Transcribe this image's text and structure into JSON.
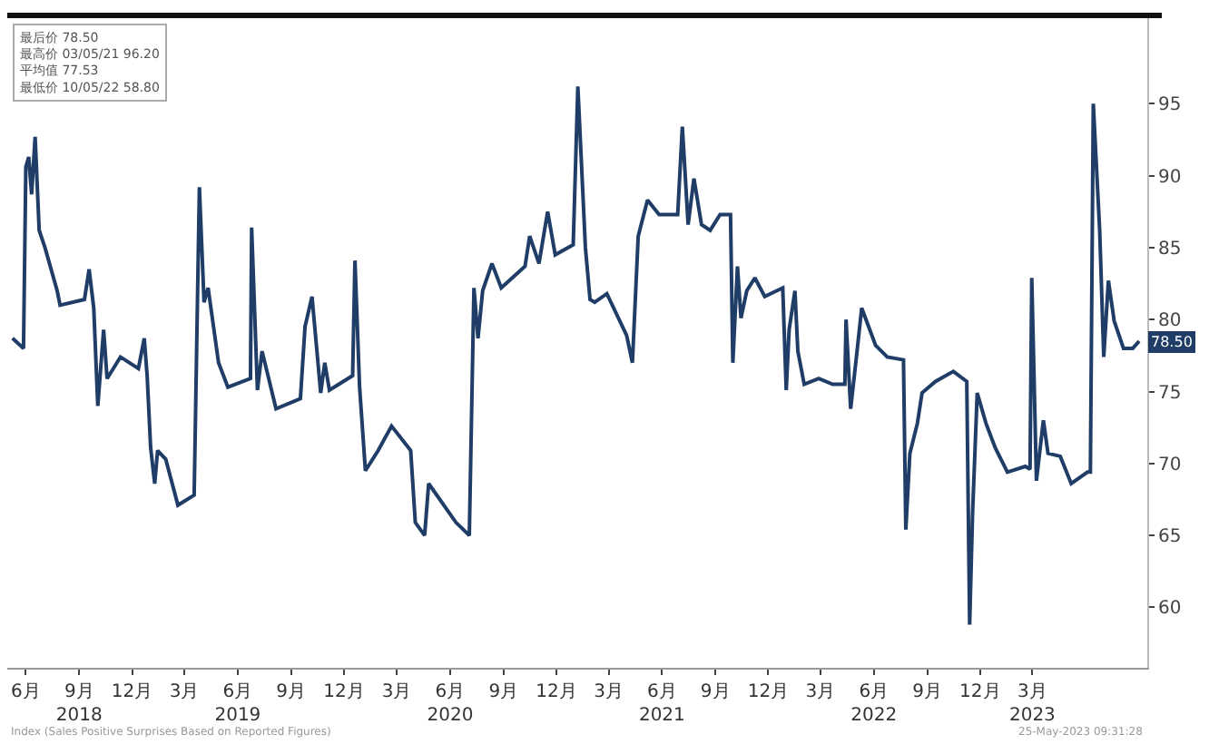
{
  "chart_data": {
    "type": "line",
    "x": [
      "2018-05-09",
      "2018-05-28",
      "2018-06-01",
      "2018-06-06",
      "2018-06-11",
      "2018-06-17",
      "2018-06-24",
      "2018-07-04",
      "2018-07-25",
      "2018-07-30",
      "2018-09-10",
      "2018-09-18",
      "2018-09-26",
      "2018-10-03",
      "2018-10-13",
      "2018-10-19",
      "2018-11-11",
      "2018-12-12",
      "2018-12-22",
      "2018-12-27",
      "2019-01-02",
      "2019-01-09",
      "2019-01-14",
      "2019-01-28",
      "2019-02-18",
      "2019-03-18",
      "2019-03-27",
      "2019-04-04",
      "2019-04-11",
      "2019-04-29",
      "2019-05-15",
      "2019-06-23",
      "2019-06-25",
      "2019-07-05",
      "2019-07-13",
      "2019-08-06",
      "2019-09-17",
      "2019-09-25",
      "2019-10-07",
      "2019-10-22",
      "2019-10-29",
      "2019-11-06",
      "2019-12-16",
      "2019-12-20",
      "2019-12-28",
      "2020-01-07",
      "2020-01-29",
      "2020-02-21",
      "2020-03-25",
      "2020-04-02",
      "2020-04-18",
      "2020-04-25",
      "2020-06-11",
      "2020-07-04",
      "2020-07-12",
      "2020-07-19",
      "2020-07-27",
      "2020-08-12",
      "2020-08-28",
      "2020-10-08",
      "2020-10-16",
      "2020-11-01",
      "2020-11-16",
      "2020-11-29",
      "2020-12-30",
      "2021-01-07",
      "2021-01-20",
      "2021-01-28",
      "2021-02-05",
      "2021-02-26",
      "2021-04-01",
      "2021-04-11",
      "2021-04-21",
      "2021-05-07",
      "2021-05-27",
      "2021-06-28",
      "2021-07-06",
      "2021-07-16",
      "2021-07-26",
      "2021-08-08",
      "2021-08-23",
      "2021-09-09",
      "2021-09-27",
      "2021-10-01",
      "2021-10-09",
      "2021-10-15",
      "2021-10-25",
      "2021-11-08",
      "2021-11-25",
      "2021-12-26",
      "2022-01-01",
      "2022-01-06",
      "2022-01-16",
      "2022-01-21",
      "2022-02-01",
      "2022-02-26",
      "2022-03-22",
      "2022-04-12",
      "2022-04-14",
      "2022-04-22",
      "2022-05-03",
      "2022-05-11",
      "2022-06-04",
      "2022-06-24",
      "2022-07-22",
      "2022-07-26",
      "2022-08-02",
      "2022-08-15",
      "2022-08-23",
      "2022-09-15",
      "2022-10-16",
      "2022-11-08",
      "2022-11-13",
      "2022-11-18",
      "2022-11-26",
      "2022-12-11",
      "2022-12-27",
      "2023-01-17",
      "2023-02-17",
      "2023-02-25",
      "2023-02-28",
      "2023-03-08",
      "2023-03-20",
      "2023-03-28",
      "2023-04-18",
      "2023-05-07",
      "2023-06-04",
      "2023-06-09",
      "2023-06-14",
      "2023-06-25",
      "2023-07-02",
      "2023-07-10",
      "2023-07-20",
      "2023-08-05",
      "2023-08-21",
      "2023-09-01"
    ],
    "series": [
      {
        "color": "#1f3d66",
        "values": [
          78.7,
          78.0,
          90.6,
          91.3,
          88.7,
          92.7,
          86.2,
          85.0,
          82.0,
          81.0,
          81.4,
          83.5,
          80.8,
          74.0,
          79.3,
          75.9,
          77.4,
          76.6,
          78.7,
          76.1,
          71.1,
          68.6,
          70.9,
          70.3,
          67.1,
          67.8,
          89.2,
          81.2,
          82.2,
          77.0,
          75.3,
          75.9,
          86.4,
          75.1,
          77.8,
          73.8,
          74.5,
          79.5,
          81.6,
          74.9,
          77.0,
          75.1,
          76.1,
          84.1,
          75.3,
          69.5,
          70.9,
          72.6,
          70.9,
          65.9,
          65.0,
          68.6,
          65.9,
          65.0,
          82.2,
          78.7,
          82.0,
          83.9,
          82.2,
          83.7,
          85.8,
          83.9,
          87.5,
          84.5,
          85.2,
          96.2,
          85.0,
          81.4,
          81.2,
          81.8,
          78.9,
          77.0,
          85.8,
          88.3,
          87.3,
          87.3,
          93.4,
          86.6,
          89.8,
          86.6,
          86.2,
          87.3,
          87.3,
          77.0,
          83.7,
          80.1,
          82.0,
          82.9,
          81.6,
          82.2,
          75.1,
          79.3,
          82.0,
          77.8,
          75.5,
          75.9,
          75.5,
          75.5,
          80.0,
          73.8,
          77.8,
          80.8,
          78.2,
          77.4,
          77.2,
          65.4,
          70.7,
          72.8,
          74.9,
          75.7,
          76.4,
          75.7,
          58.8,
          66.5,
          74.9,
          72.8,
          71.1,
          69.4,
          69.8,
          69.6,
          82.9,
          68.8,
          73.0,
          70.7,
          70.5,
          68.6,
          69.4,
          69.4,
          95.0,
          86.2,
          77.4,
          82.7,
          79.9,
          78.0,
          78.0,
          78.5
        ]
      }
    ],
    "xlim": [
      "2018-04-30",
      "2023-09-15"
    ],
    "xticks": [
      {
        "value": "2018-06-01",
        "label": "6月"
      },
      {
        "value": "2018-09-01",
        "label": "9月\n2018"
      },
      {
        "value": "2018-12-01",
        "label": "12月"
      },
      {
        "value": "2019-03-01",
        "label": "3月"
      },
      {
        "value": "2019-06-01",
        "label": "6月\n2019"
      },
      {
        "value": "2019-09-01",
        "label": "9月"
      },
      {
        "value": "2019-12-01",
        "label": "12月"
      },
      {
        "value": "2020-03-01",
        "label": "3月"
      },
      {
        "value": "2020-06-01",
        "label": "6月\n2020"
      },
      {
        "value": "2020-09-01",
        "label": "9月"
      },
      {
        "value": "2020-12-01",
        "label": "12月"
      },
      {
        "value": "2021-03-01",
        "label": "3月"
      },
      {
        "value": "2021-06-01",
        "label": "6月\n2021"
      },
      {
        "value": "2021-09-01",
        "label": "9月"
      },
      {
        "value": "2021-12-01",
        "label": "12月"
      },
      {
        "value": "2022-03-01",
        "label": "3月"
      },
      {
        "value": "2022-06-01",
        "label": "6月\n2022"
      },
      {
        "value": "2022-09-01",
        "label": "9月"
      },
      {
        "value": "2022-12-01",
        "label": "12月"
      },
      {
        "value": "2023-03-01",
        "label": "3月\n2023"
      }
    ],
    "ylim": [
      55.8,
      101.2
    ],
    "yticks": [
      60,
      65,
      70,
      75,
      80,
      85,
      90,
      95
    ],
    "grid": false,
    "annotations": [
      "最后价 78.50\n最高价 03/05/21 96.20\n平均值 77.53\n最低价 10/05/22 58.80",
      {
        "text": "78.50",
        "x": "2023-09-01",
        "y": 78.5
      },
      "Index (Sales Positive Surprises Based on Reported Figures)",
      "25-May-2023 09:31:28"
    ]
  }
}
